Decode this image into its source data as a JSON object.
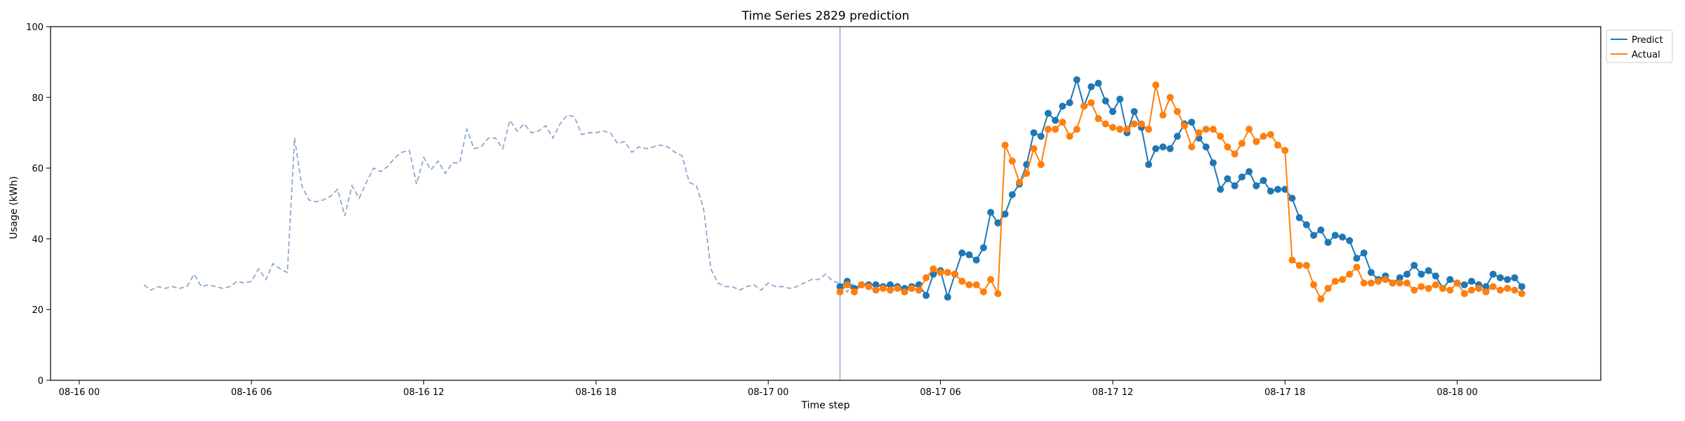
{
  "chart_data": {
    "type": "line",
    "title": "Time Series 2829 prediction",
    "xlabel": "Time step",
    "ylabel": "Usage (kWh)",
    "ylim": [
      0,
      100
    ],
    "yticks": [
      0,
      20,
      40,
      60,
      80,
      100
    ],
    "x_start": "2024-08-16 00:00",
    "x_range_hours": [
      -1,
      53
    ],
    "xtick_hours": [
      0,
      6,
      12,
      18,
      24,
      30,
      36,
      42,
      48
    ],
    "xtick_labels": [
      "08-16 00",
      "08-16 06",
      "08-16 12",
      "08-16 18",
      "08-17 00",
      "08-17 06",
      "08-17 12",
      "08-17 18",
      "08-18 00"
    ],
    "step_hours": 0.25,
    "forecast_start_hour": 26.5,
    "legend": [
      "Predict",
      "Actual"
    ],
    "legend_position": "upper right, outside plot",
    "colors": {
      "history": "#8fa8cc",
      "predict": "#1f77b4",
      "actual": "#ff7f0e",
      "divider": "#8fa8cc"
    },
    "history": {
      "start_hour": 2.25,
      "values": [
        27.0,
        25.5,
        26.5,
        26.0,
        26.5,
        26.0,
        26.5,
        30.0,
        26.5,
        27.0,
        26.5,
        26.0,
        26.5,
        28.0,
        27.5,
        28.0,
        31.5,
        28.5,
        33.0,
        31.5,
        30.5,
        68.5,
        55.0,
        51.0,
        50.5,
        51.0,
        52.0,
        54.0,
        46.5,
        55.0,
        51.5,
        56.0,
        60.0,
        59.0,
        60.5,
        63.0,
        64.5,
        65.0,
        55.5,
        63.0,
        59.5,
        62.0,
        58.5,
        61.5,
        61.5,
        71.0,
        65.5,
        66.0,
        68.5,
        68.5,
        65.5,
        73.5,
        70.5,
        72.5,
        70.0,
        70.5,
        72.0,
        68.5,
        72.5,
        75.0,
        74.5,
        69.5,
        70.0,
        70.0,
        70.5,
        70.0,
        67.0,
        67.5,
        64.5,
        66.0,
        65.5,
        66.0,
        66.5,
        66.0,
        64.5,
        63.5,
        56.0,
        55.0,
        48.5,
        31.5,
        27.5,
        26.5,
        26.5,
        25.5,
        26.5,
        27.0,
        25.5,
        27.5,
        26.5,
        26.5,
        26.0,
        26.5,
        27.5,
        28.5,
        28.5,
        30.0,
        28.0,
        27.5,
        25.0,
        28.0
      ]
    },
    "series": [
      {
        "name": "Predict",
        "start_hour": 26.5,
        "values": [
          26.5,
          28.0,
          26.0,
          27.0,
          27.0,
          27.0,
          26.5,
          27.0,
          26.5,
          26.0,
          26.5,
          27.0,
          24.0,
          30.0,
          31.0,
          23.5,
          30.0,
          36.0,
          35.5,
          34.0,
          37.5,
          47.5,
          44.5,
          47.0,
          52.5,
          55.5,
          61.0,
          70.0,
          69.0,
          75.5,
          73.5,
          77.5,
          78.5,
          85.0,
          77.5,
          83.0,
          84.0,
          79.0,
          76.0,
          79.5,
          70.0,
          76.0,
          71.5,
          61.0,
          65.5,
          66.0,
          65.5,
          69.0,
          72.5,
          73.0,
          68.5,
          66.0,
          61.5,
          54.0,
          57.0,
          55.0,
          57.5,
          59.0,
          55.0,
          56.5,
          53.5,
          54.0,
          54.0,
          51.5,
          46.0,
          44.0,
          41.0,
          42.5,
          39.0,
          41.0,
          40.5,
          39.5,
          34.5,
          36.0,
          30.5,
          28.5,
          29.5,
          27.5,
          29.0,
          30.0,
          32.5,
          30.0,
          31.0,
          29.5,
          26.0,
          28.5,
          27.5,
          27.0,
          28.0,
          27.0,
          26.5,
          30.0,
          29.0,
          28.5,
          29.0,
          26.5
        ]
      },
      {
        "name": "Actual",
        "start_hour": 26.5,
        "values": [
          25.0,
          27.0,
          25.0,
          27.0,
          26.5,
          25.5,
          26.0,
          25.5,
          26.0,
          25.0,
          26.0,
          25.5,
          29.0,
          31.5,
          30.5,
          30.5,
          30.0,
          28.0,
          27.0,
          27.0,
          25.0,
          28.5,
          24.5,
          66.5,
          62.0,
          56.0,
          58.5,
          65.5,
          61.0,
          71.0,
          71.0,
          73.0,
          69.0,
          71.0,
          77.5,
          78.5,
          74.0,
          72.5,
          71.5,
          71.0,
          71.0,
          72.5,
          72.5,
          71.0,
          83.5,
          75.0,
          80.0,
          76.0,
          72.0,
          66.0,
          70.0,
          71.0,
          71.0,
          69.0,
          66.0,
          64.0,
          67.0,
          71.0,
          67.5,
          69.0,
          69.5,
          66.5,
          65.0,
          34.0,
          32.5,
          32.5,
          27.0,
          23.0,
          26.0,
          28.0,
          28.5,
          30.0,
          32.0,
          27.5,
          27.5,
          28.0,
          28.5,
          27.5,
          27.5,
          27.5,
          25.5,
          26.5,
          26.0,
          27.0,
          26.0,
          25.5,
          27.5,
          24.5,
          25.5,
          26.0,
          25.0,
          26.5,
          25.5,
          26.0,
          25.5,
          24.5
        ]
      }
    ]
  }
}
